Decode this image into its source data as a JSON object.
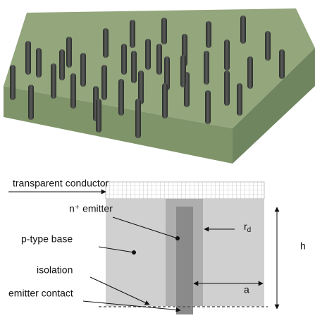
{
  "labels": {
    "transparent_conductor": "transparent conductor",
    "n_emitter": "n⁺ emitter",
    "p_type_base": "p-type base",
    "isolation": "isolation",
    "emitter_contact": "emitter contact",
    "radius": {
      "main": "r",
      "sub": "d"
    },
    "height": "h",
    "spacing": "a"
  }
}
